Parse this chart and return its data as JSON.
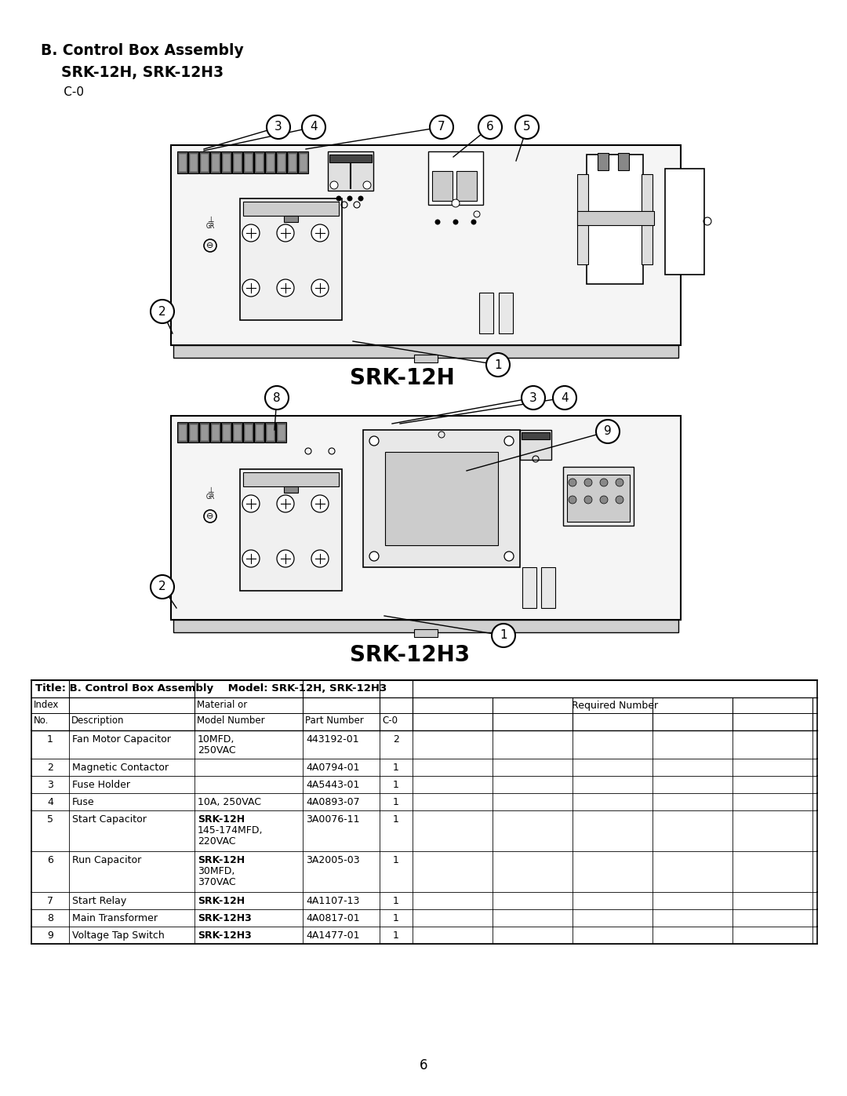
{
  "page_bg": "#ffffff",
  "title_line1": "B. Control Box Assembly",
  "title_line2": "    SRK-12H, SRK-12H3",
  "title_line3": "      C-0",
  "diagram1_label": "SRK-12H",
  "diagram2_label": "SRK-12H3",
  "page_number": "6",
  "table_header_title": "Title: B. Control Box Assembly    Model: SRK-12H, SRK-12H3",
  "rows": [
    {
      "index": "1",
      "desc": "Fan Motor Capacitor",
      "model": "10MFD,\n250VAC",
      "part": "443192-01",
      "c0": "2",
      "bold_model": false
    },
    {
      "index": "2",
      "desc": "Magnetic Contactor",
      "model": "",
      "part": "4A0794-01",
      "c0": "1",
      "bold_model": false
    },
    {
      "index": "3",
      "desc": "Fuse Holder",
      "model": "",
      "part": "4A5443-01",
      "c0": "1",
      "bold_model": false
    },
    {
      "index": "4",
      "desc": "Fuse",
      "model": "10A, 250VAC",
      "part": "4A0893-07",
      "c0": "1",
      "bold_model": false
    },
    {
      "index": "5",
      "desc": "Start Capacitor",
      "model": "SRK-12H\n145-174MFD,\n220VAC",
      "part": "3A0076-11",
      "c0": "1",
      "bold_model": true
    },
    {
      "index": "6",
      "desc": "Run Capacitor",
      "model": "SRK-12H\n30MFD,\n370VAC",
      "part": "3A2005-03",
      "c0": "1",
      "bold_model": true
    },
    {
      "index": "7",
      "desc": "Start Relay",
      "model": "SRK-12H",
      "part": "4A1107-13",
      "c0": "1",
      "bold_model": true
    },
    {
      "index": "8",
      "desc": "Main Transformer",
      "model": "SRK-12H3",
      "part": "4A0817-01",
      "c0": "1",
      "bold_model": true
    },
    {
      "index": "9",
      "desc": "Voltage Tap Switch",
      "model": "SRK-12H3",
      "part": "4A1477-01",
      "c0": "1",
      "bold_model": true
    }
  ]
}
